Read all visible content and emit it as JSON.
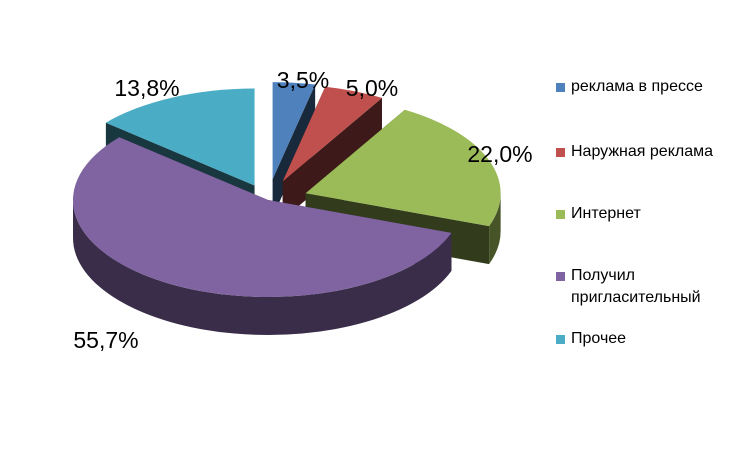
{
  "chart_data": {
    "type": "pie",
    "style": "3d-exploded",
    "slices": [
      {
        "label": "реклама в прессе",
        "value": 3.5,
        "display": "3,5%",
        "color": "#4F81BD"
      },
      {
        "label": "Наружная реклама",
        "value": 5.0,
        "display": "5,0%",
        "color": "#C0504D"
      },
      {
        "label": "Интернет",
        "value": 22.0,
        "display": "22,0%",
        "color": "#9BBB59"
      },
      {
        "label": "Получил пригласительный",
        "value": 55.7,
        "display": "55,7%",
        "color": "#8064A2"
      },
      {
        "label": "Прочее",
        "value": 13.8,
        "display": "13,8%",
        "color": "#4BACC6"
      }
    ],
    "legend_position": "right",
    "title": ""
  }
}
